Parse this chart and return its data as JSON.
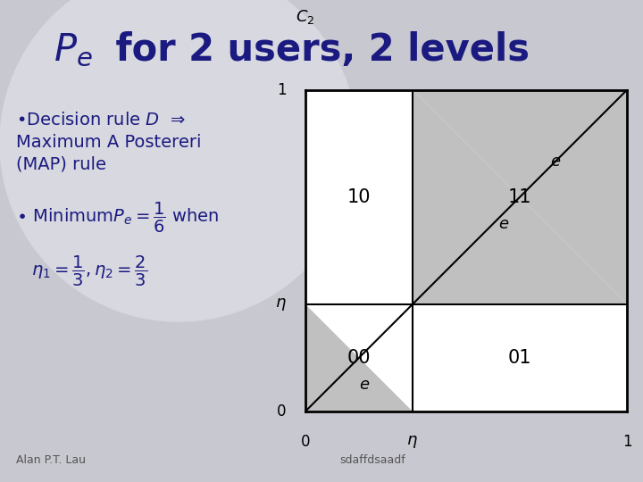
{
  "background_color": "#c8c8d0",
  "title_pe": "$P_e$",
  "title_rest": " for 2 users, 2 levels",
  "bullet1a": "•Decision rule $D$  ⇒",
  "bullet1b": "Maximum A Postereri",
  "bullet1c": "(MAP) rule",
  "bullet2": "• Minimum $P_e = \\dfrac{1}{6}$ when",
  "eta_eq": "$\\eta_1 = \\dfrac{1}{3},\\eta_2 = \\dfrac{2}{3}$",
  "footer_left": "Alan P.T. Lau",
  "footer_right": "sdaffdsaadf",
  "box_bg": "#ffffff",
  "shaded_color": "#c0c0c0",
  "text_color": "#1a1a80",
  "eta": 0.333
}
